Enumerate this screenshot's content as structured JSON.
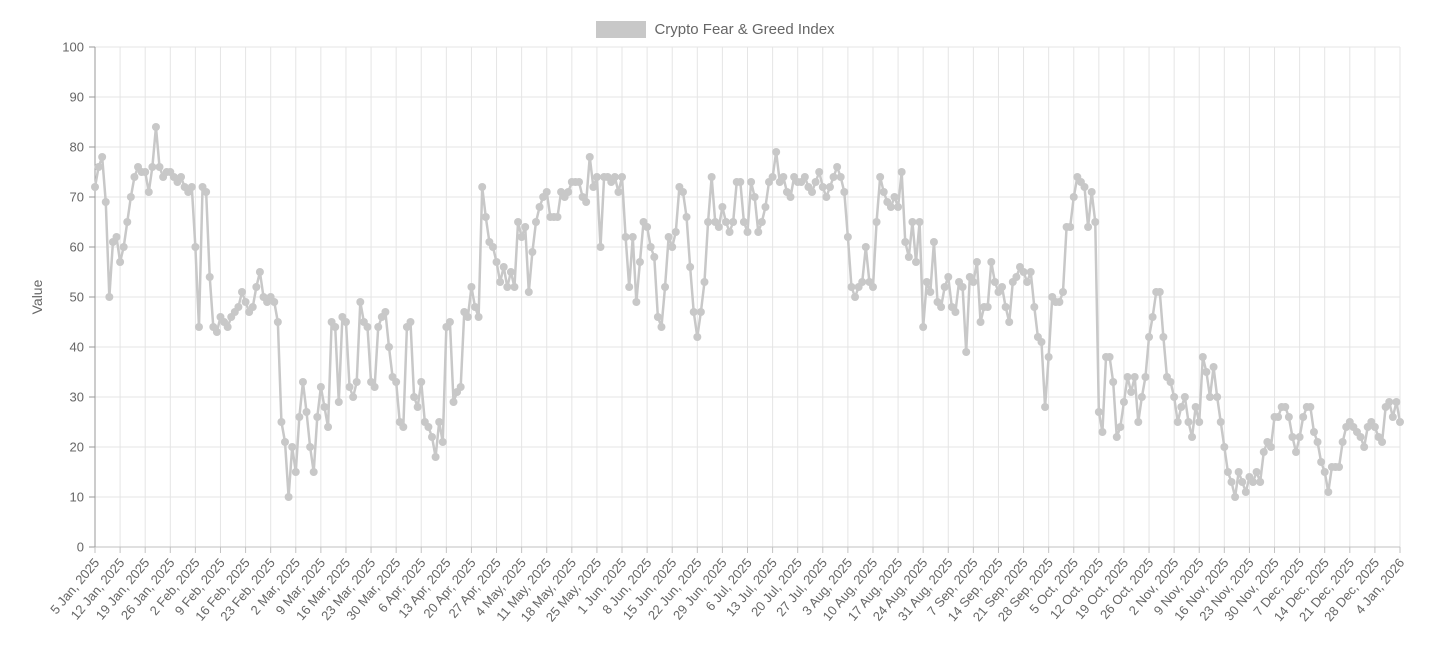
{
  "legend": {
    "label": "Crypto Fear & Greed Index"
  },
  "y_axis": {
    "title": "Value"
  },
  "chart_data": {
    "type": "line",
    "title": "Crypto Fear & Greed Index",
    "ylabel": "Value",
    "xlabel": "",
    "ylim": [
      0,
      100
    ],
    "y_ticks": [
      0,
      10,
      20,
      30,
      40,
      50,
      60,
      70,
      80,
      90,
      100
    ],
    "x_tick_interval_days": 7,
    "grid": true,
    "legend_position": "top-center",
    "x_tick_labels": [
      "5 Jan, 2025",
      "12 Jan, 2025",
      "19 Jan, 2025",
      "26 Jan, 2025",
      "2 Feb, 2025",
      "9 Feb, 2025",
      "16 Feb, 2025",
      "23 Feb, 2025",
      "2 Mar, 2025",
      "9 Mar, 2025",
      "16 Mar, 2025",
      "23 Mar, 2025",
      "30 Mar, 2025",
      "6 Apr, 2025",
      "13 Apr, 2025",
      "20 Apr, 2025",
      "27 Apr, 2025",
      "4 May, 2025",
      "11 May, 2025",
      "18 May, 2025",
      "25 May, 2025",
      "1 Jun, 2025",
      "8 Jun, 2025",
      "15 Jun, 2025",
      "22 Jun, 2025",
      "29 Jun, 2025",
      "6 Jul, 2025",
      "13 Jul, 2025",
      "20 Jul, 2025",
      "27 Jul, 2025",
      "3 Aug, 2025",
      "10 Aug, 2025",
      "17 Aug, 2025",
      "24 Aug, 2025",
      "31 Aug, 2025",
      "7 Sep, 2025",
      "14 Sep, 2025",
      "21 Sep, 2025",
      "28 Sep, 2025",
      "5 Oct, 2025",
      "12 Oct, 2025",
      "19 Oct, 2025",
      "26 Oct, 2025",
      "2 Nov, 2025",
      "9 Nov, 2025",
      "16 Nov, 2025",
      "23 Nov, 2025",
      "30 Nov, 2025",
      "7 Dec, 2025",
      "14 Dec, 2025",
      "21 Dec, 2025",
      "28 Dec, 2025",
      "4 Jan, 2026"
    ],
    "series": [
      {
        "name": "Crypto Fear & Greed Index",
        "color": "#c8c8c8",
        "marker": "circle",
        "frequency": "daily",
        "start": "5 Jan, 2025",
        "end": "4 Jan, 2026",
        "values": [
          72,
          76,
          78,
          69,
          50,
          61,
          62,
          57,
          60,
          65,
          70,
          74,
          76,
          75,
          75,
          71,
          76,
          84,
          76,
          74,
          75,
          75,
          74,
          73,
          74,
          72,
          71,
          72,
          60,
          44,
          72,
          71,
          54,
          44,
          43,
          46,
          45,
          44,
          46,
          47,
          48,
          51,
          49,
          47,
          48,
          52,
          55,
          50,
          49,
          50,
          49,
          45,
          25,
          21,
          10,
          20,
          15,
          26,
          33,
          27,
          20,
          15,
          26,
          32,
          28,
          24,
          45,
          44,
          29,
          46,
          45,
          32,
          30,
          33,
          49,
          45,
          44,
          33,
          32,
          44,
          46,
          47,
          40,
          34,
          33,
          25,
          24,
          44,
          45,
          30,
          28,
          33,
          25,
          24,
          22,
          18,
          25,
          21,
          44,
          45,
          29,
          31,
          32,
          47,
          46,
          52,
          48,
          46,
          72,
          66,
          61,
          60,
          57,
          53,
          56,
          52,
          55,
          52,
          65,
          62,
          64,
          51,
          59,
          65,
          68,
          70,
          71,
          66,
          66,
          66,
          71,
          70,
          71,
          73,
          73,
          73,
          70,
          69,
          78,
          72,
          74,
          60,
          74,
          74,
          73,
          74,
          71,
          74,
          62,
          52,
          62,
          49,
          57,
          65,
          64,
          60,
          58,
          46,
          44,
          52,
          62,
          60,
          63,
          72,
          71,
          66,
          56,
          47,
          42,
          47,
          53,
          65,
          74,
          65,
          64,
          68,
          65,
          63,
          65,
          73,
          73,
          65,
          63,
          73,
          70,
          63,
          65,
          68,
          73,
          74,
          79,
          73,
          74,
          71,
          70,
          74,
          73,
          73,
          74,
          72,
          71,
          73,
          75,
          72,
          70,
          72,
          74,
          76,
          74,
          71,
          62,
          52,
          50,
          52,
          53,
          60,
          53,
          52,
          65,
          74,
          71,
          69,
          68,
          70,
          68,
          75,
          61,
          58,
          65,
          57,
          65,
          44,
          53,
          51,
          61,
          49,
          48,
          52,
          54,
          48,
          47,
          53,
          52,
          39,
          54,
          53,
          57,
          45,
          48,
          48,
          57,
          53,
          51,
          52,
          48,
          45,
          53,
          54,
          56,
          55,
          53,
          55,
          48,
          42,
          41,
          28,
          38,
          50,
          49,
          49,
          51,
          64,
          64,
          70,
          74,
          73,
          72,
          64,
          71,
          65,
          27,
          23,
          38,
          38,
          33,
          22,
          24,
          29,
          34,
          31,
          34,
          25,
          30,
          34,
          42,
          46,
          51,
          51,
          42,
          34,
          33,
          30,
          25,
          28,
          30,
          25,
          22,
          28,
          25,
          38,
          35,
          30,
          36,
          30,
          25,
          20,
          15,
          13,
          10,
          15,
          13,
          11,
          14,
          13,
          15,
          13,
          19,
          21,
          20,
          26,
          26,
          28,
          28,
          26,
          22,
          19,
          22,
          26,
          28,
          28,
          23,
          21,
          17,
          15,
          11,
          16,
          16,
          16,
          21,
          24,
          25,
          24,
          23,
          22,
          20,
          24,
          25,
          24,
          22,
          21,
          28,
          29,
          26,
          29,
          25
        ]
      }
    ]
  },
  "colors": {
    "series": "#c8c8c8",
    "grid": "#e5e5e5",
    "y_axis_line": "#9a9a9a",
    "x_axis_line": "#c2c2c2",
    "text": "#666666",
    "background": "#ffffff"
  }
}
